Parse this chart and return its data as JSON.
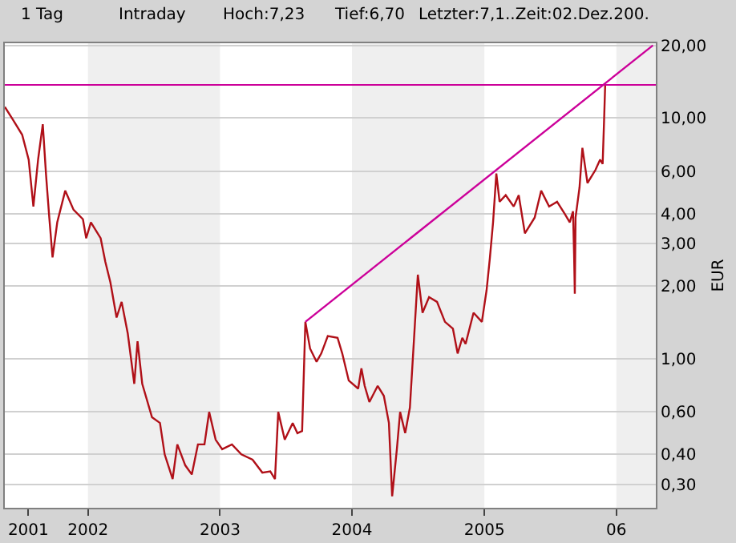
{
  "chart_data": {
    "type": "line",
    "annotations": [
      "1 Tag",
      "Intraday",
      "Hoch:7,23",
      "Tief:6,70",
      "Letzter:7,1..Zeit:02.Dez.200."
    ],
    "ylabel": "EUR",
    "log": "y",
    "grid": "y",
    "xlim": [
      "2001-05-16",
      "2006-04-20"
    ],
    "xticks": [
      {
        "value": "2001-07-20",
        "label": "2001"
      },
      {
        "value": "2002-01-01",
        "label": "2002"
      },
      {
        "value": "2003-01-01",
        "label": "2003"
      },
      {
        "value": "2004-01-01",
        "label": "2004"
      },
      {
        "value": "2005-01-01",
        "label": "2005"
      },
      {
        "value": "2006-01-01",
        "label": "06"
      }
    ],
    "ylim": [
      0.24,
      20.4
    ],
    "yticks": [
      {
        "value": 0.3,
        "label": "0,30"
      },
      {
        "value": 0.4,
        "label": "0,40"
      },
      {
        "value": 0.6,
        "label": "0,60"
      },
      {
        "value": 1,
        "label": "1,00"
      },
      {
        "value": 2,
        "label": "2,00"
      },
      {
        "value": 3,
        "label": "3,00"
      },
      {
        "value": 4,
        "label": "4,00"
      },
      {
        "value": 6,
        "label": "6,00"
      },
      {
        "value": 10,
        "label": "10,00"
      },
      {
        "value": 20,
        "label": "20,00"
      }
    ],
    "bands": [
      {
        "axis": "x",
        "from": "2002-01-01",
        "to": "2003-01-01",
        "color": "#efefef"
      },
      {
        "axis": "x",
        "from": "2004-01-01",
        "to": "2005-01-01",
        "color": "#efefef"
      },
      {
        "axis": "x",
        "from": "2006-01-01",
        "to": "2006-04-20",
        "color": "#efefef"
      }
    ],
    "ref_lines": [
      {
        "axis": "y",
        "value": 13.7,
        "color": "#cc0099"
      }
    ],
    "series": [
      {
        "color": "#b01018",
        "x": [
          "2001-05-16",
          "2001-06-07",
          "2001-07-03",
          "2001-07-21",
          "2001-08-03",
          "2001-08-16",
          "2001-08-29",
          "2001-09-07",
          "2001-09-16",
          "2001-09-25",
          "2001-10-08",
          "2001-10-30",
          "2001-11-22",
          "2001-12-18",
          "2001-12-27",
          "2002-01-09",
          "2002-02-05",
          "2002-02-18",
          "2002-03-04",
          "2002-03-21",
          "2002-04-04",
          "2002-04-21",
          "2002-05-09",
          "2002-05-18",
          "2002-05-31",
          "2002-06-27",
          "2002-07-19",
          "2002-08-01",
          "2002-08-23",
          "2002-09-05",
          "2002-09-27",
          "2002-10-15",
          "2002-11-01",
          "2002-11-19",
          "2002-12-02",
          "2002-12-20",
          "2003-01-07",
          "2003-02-03",
          "2003-03-01",
          "2003-04-01",
          "2003-04-28",
          "2003-05-20",
          "2003-06-02",
          "2003-06-11",
          "2003-06-29",
          "2003-07-21",
          "2003-08-03",
          "2003-08-16",
          "2003-08-25",
          "2003-09-07",
          "2003-09-25",
          "2003-10-08",
          "2003-10-26",
          "2003-11-22",
          "2003-12-05",
          "2003-12-23",
          "2004-01-18",
          "2004-01-27",
          "2004-02-05",
          "2004-02-18",
          "2004-03-12",
          "2004-03-29",
          "2004-04-12",
          "2004-04-21",
          "2004-05-04",
          "2004-05-13",
          "2004-05-27",
          "2004-06-09",
          "2004-06-18",
          "2004-07-01",
          "2004-07-14",
          "2004-08-01",
          "2004-08-23",
          "2004-09-14",
          "2004-10-06",
          "2004-10-19",
          "2004-11-01",
          "2004-11-10",
          "2004-12-02",
          "2004-12-25",
          "2005-01-07",
          "2005-01-16",
          "2005-01-25",
          "2005-02-03",
          "2005-02-12",
          "2005-03-01",
          "2005-03-23",
          "2005-04-06",
          "2005-04-23",
          "2005-05-20",
          "2005-06-07",
          "2005-06-29",
          "2005-07-21",
          "2005-08-12",
          "2005-08-25",
          "2005-09-03",
          "2005-09-06",
          "2005-09-08",
          "2005-09-10",
          "2005-09-21",
          "2005-09-29",
          "2005-10-13",
          "2005-11-04",
          "2005-11-17",
          "2005-11-24",
          "2005-11-28",
          "2005-12-01"
        ],
        "values": [
          11.1,
          9.85,
          8.5,
          6.7,
          4.28,
          6.7,
          9.4,
          5.8,
          3.85,
          2.63,
          3.68,
          4.98,
          4.15,
          3.79,
          3.16,
          3.68,
          3.16,
          2.52,
          2.07,
          1.48,
          1.72,
          1.27,
          0.785,
          1.18,
          0.785,
          0.57,
          0.54,
          0.4,
          0.316,
          0.44,
          0.36,
          0.33,
          0.44,
          0.44,
          0.6,
          0.46,
          0.42,
          0.44,
          0.4,
          0.38,
          0.336,
          0.34,
          0.316,
          0.6,
          0.46,
          0.54,
          0.49,
          0.5,
          1.42,
          1.1,
          0.97,
          1.05,
          1.24,
          1.22,
          1.05,
          0.81,
          0.75,
          0.91,
          0.77,
          0.66,
          0.77,
          0.7,
          0.54,
          0.268,
          0.42,
          0.6,
          0.49,
          0.625,
          1.05,
          2.23,
          1.55,
          1.8,
          1.72,
          1.42,
          1.33,
          1.05,
          1.22,
          1.15,
          1.55,
          1.42,
          1.92,
          2.6,
          3.68,
          5.87,
          4.48,
          4.77,
          4.28,
          4.77,
          3.31,
          3.85,
          4.98,
          4.28,
          4.48,
          3.97,
          3.68,
          4.09,
          2.72,
          1.86,
          3.85,
          5.13,
          7.5,
          5.36,
          6.07,
          6.7,
          6.43,
          9.85,
          13.7
        ]
      },
      {
        "color": "#cc0099",
        "x": [
          "2003-08-25",
          "2006-04-12"
        ],
        "values": [
          1.42,
          20
        ]
      }
    ]
  }
}
